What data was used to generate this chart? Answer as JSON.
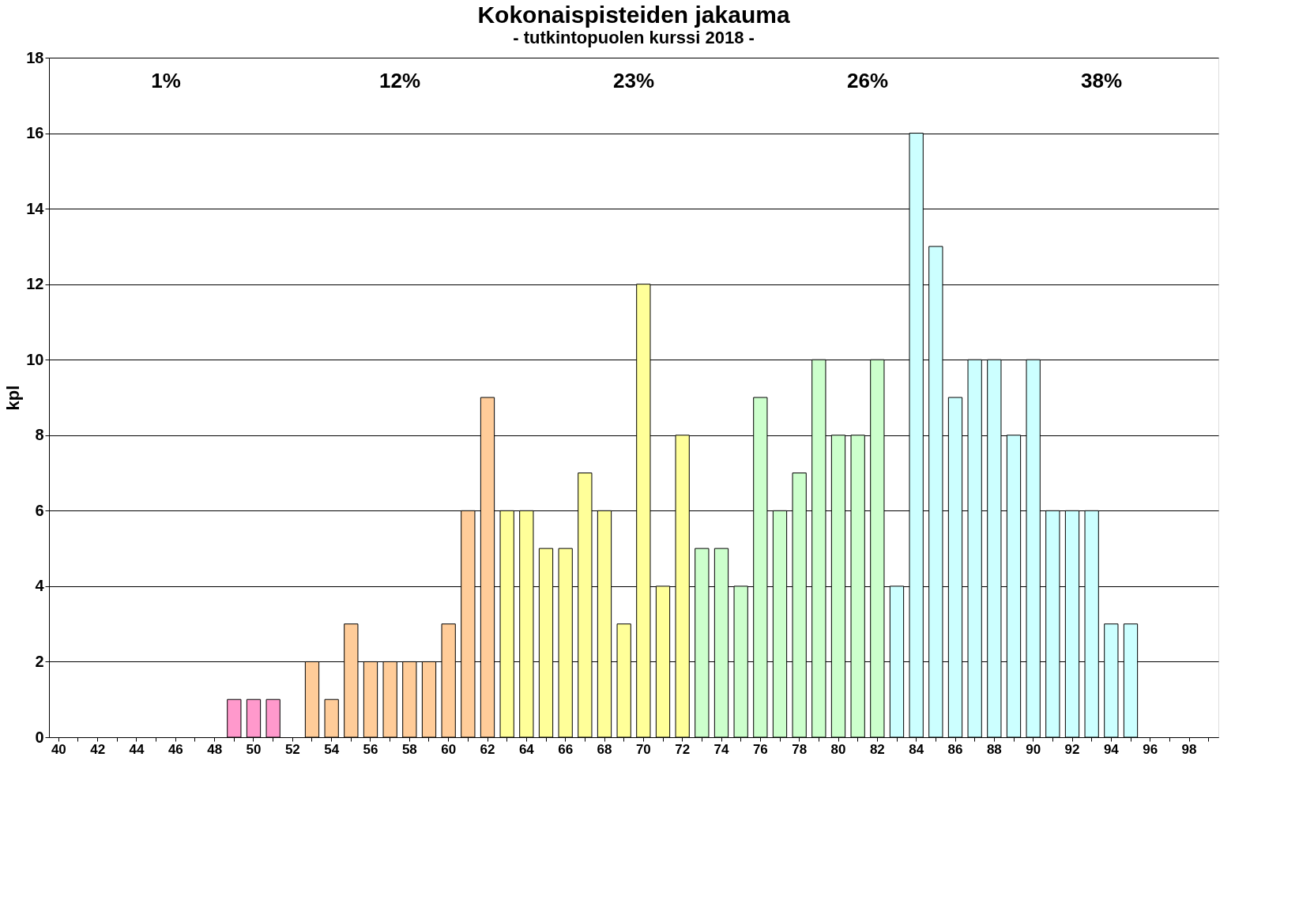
{
  "chart_data": {
    "type": "bar",
    "title": "Kokonaispisteiden jakauma",
    "subtitle": "- tutkintopuolen kurssi 2018 -",
    "ylabel": "kpl",
    "categories": [
      "40",
      null,
      "42",
      null,
      "44",
      null,
      "46",
      null,
      "48",
      null,
      "50",
      null,
      "52",
      null,
      "54",
      null,
      "56",
      null,
      "58",
      null,
      "60",
      null,
      "62",
      null,
      "64",
      null,
      "66",
      null,
      "68",
      null,
      "70",
      null,
      "72",
      null,
      "74",
      null,
      "76",
      null,
      "78",
      null,
      "80",
      null,
      "82",
      null,
      "84",
      null,
      "86",
      null,
      "88",
      null,
      "90",
      null,
      "92",
      null,
      "94",
      null,
      "96",
      null,
      "98",
      null
    ],
    "values": [
      null,
      null,
      null,
      null,
      null,
      null,
      null,
      null,
      null,
      1,
      1,
      1,
      null,
      2,
      1,
      3,
      2,
      2,
      2,
      2,
      3,
      6,
      9,
      6,
      6,
      5,
      5,
      7,
      6,
      3,
      12,
      4,
      8,
      5,
      5,
      4,
      9,
      6,
      7,
      10,
      8,
      8,
      10,
      4,
      16,
      13,
      9,
      10,
      10,
      8,
      10,
      6,
      6,
      6,
      3,
      3,
      null,
      null,
      null,
      null
    ],
    "colors": [
      null,
      null,
      null,
      null,
      null,
      null,
      null,
      null,
      null,
      "#ff99cc",
      "#ff99cc",
      "#ff99cc",
      null,
      "#ffcc99",
      "#ffcc99",
      "#ffcc99",
      "#ffcc99",
      "#ffcc99",
      "#ffcc99",
      "#ffcc99",
      "#ffcc99",
      "#ffcc99",
      "#ffcc99",
      "#ffff99",
      "#ffff99",
      "#ffff99",
      "#ffff99",
      "#ffff99",
      "#ffff99",
      "#ffff99",
      "#ffff99",
      "#ffff99",
      "#ffff99",
      "#ccffcc",
      "#ccffcc",
      "#ccffcc",
      "#ccffcc",
      "#ccffcc",
      "#ccffcc",
      "#ccffcc",
      "#ccffcc",
      "#ccffcc",
      "#ccffcc",
      "#ccffff",
      "#ccffff",
      "#ccffff",
      "#ccffff",
      "#ccffff",
      "#ccffff",
      "#ccffff",
      "#ccffff",
      "#ccffff",
      "#ccffff",
      "#ccffff",
      "#ccffff",
      "#ccffff",
      null,
      null,
      null,
      null
    ],
    "ylim": [
      0,
      18
    ],
    "yticks": [
      0,
      2,
      4,
      6,
      8,
      10,
      12,
      14,
      16,
      18
    ],
    "grid": "y",
    "annotations": [
      "1%",
      "12%",
      "23%",
      "26%",
      "38%"
    ]
  }
}
